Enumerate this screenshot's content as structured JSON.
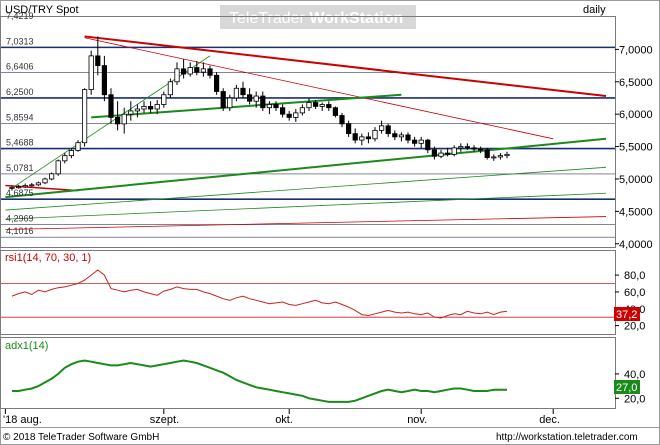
{
  "header": {
    "symbol": "USD/TRY Spot",
    "interval": "daily",
    "watermark_a": "TeleTrader ",
    "watermark_b": "WorkStation"
  },
  "footer": {
    "copyright": "© 2018 TeleTrader Software GmbH",
    "url": "http://workstation.teletrader.com"
  },
  "colors": {
    "candle_up": "#ffffff",
    "candle_down": "#000000",
    "red_line": "#cc0000",
    "green_line": "#1a8a1a",
    "blue_line": "#1a2f6e",
    "rsi_line": "#cc2222",
    "adx_line": "#1a8a1a",
    "rsi_badge": "#cc0000",
    "adx_badge": "#1a8a1a"
  },
  "chart_data": [
    {
      "type": "candlestick",
      "title": "USD/TRY Spot",
      "x_labels": [
        "'18 aug.",
        "szept.",
        "okt.",
        "nov.",
        "dec."
      ],
      "y_axis_right": [
        "7,0000",
        "6,5000",
        "6,0000",
        "5,5000",
        "5,0000",
        "4,5000",
        "4,0000"
      ],
      "y_levels_left": [
        "7,4219",
        "7,0313",
        "6,6406",
        "6,2500",
        "5,8594",
        "5,4688",
        "5,0781",
        "4,6875",
        "4,2969",
        "4,1016"
      ],
      "ylim": [
        3.95,
        7.5
      ],
      "candles": [
        {
          "o": 4.86,
          "h": 4.9,
          "l": 4.82,
          "c": 4.87
        },
        {
          "o": 4.87,
          "h": 4.91,
          "l": 4.85,
          "c": 4.88
        },
        {
          "o": 4.88,
          "h": 4.93,
          "l": 4.86,
          "c": 4.9
        },
        {
          "o": 4.9,
          "h": 4.94,
          "l": 4.88,
          "c": 4.91
        },
        {
          "o": 4.91,
          "h": 4.96,
          "l": 4.89,
          "c": 4.94
        },
        {
          "o": 4.94,
          "h": 5.02,
          "l": 4.92,
          "c": 5.0
        },
        {
          "o": 5.0,
          "h": 5.1,
          "l": 4.98,
          "c": 5.08
        },
        {
          "o": 5.08,
          "h": 5.3,
          "l": 5.05,
          "c": 5.28
        },
        {
          "o": 5.28,
          "h": 5.4,
          "l": 5.24,
          "c": 5.36
        },
        {
          "o": 5.36,
          "h": 5.48,
          "l": 5.32,
          "c": 5.44
        },
        {
          "o": 5.44,
          "h": 5.6,
          "l": 5.42,
          "c": 5.56
        },
        {
          "o": 5.56,
          "h": 6.4,
          "l": 5.5,
          "c": 6.38
        },
        {
          "o": 6.38,
          "h": 6.98,
          "l": 6.3,
          "c": 6.9
        },
        {
          "o": 6.9,
          "h": 7.2,
          "l": 6.6,
          "c": 6.75
        },
        {
          "o": 6.75,
          "h": 6.9,
          "l": 6.2,
          "c": 6.3
        },
        {
          "o": 6.3,
          "h": 6.4,
          "l": 5.85,
          "c": 5.95
        },
        {
          "o": 5.95,
          "h": 6.2,
          "l": 5.75,
          "c": 5.85
        },
        {
          "o": 5.85,
          "h": 6.1,
          "l": 5.7,
          "c": 6.0
        },
        {
          "o": 6.0,
          "h": 6.2,
          "l": 5.9,
          "c": 6.05
        },
        {
          "o": 6.05,
          "h": 6.15,
          "l": 5.95,
          "c": 6.08
        },
        {
          "o": 6.08,
          "h": 6.2,
          "l": 6.02,
          "c": 6.12
        },
        {
          "o": 6.12,
          "h": 6.2,
          "l": 6.02,
          "c": 6.08
        },
        {
          "o": 6.08,
          "h": 6.22,
          "l": 6.0,
          "c": 6.15
        },
        {
          "o": 6.15,
          "h": 6.35,
          "l": 6.1,
          "c": 6.3
        },
        {
          "o": 6.3,
          "h": 6.55,
          "l": 6.25,
          "c": 6.5
        },
        {
          "o": 6.5,
          "h": 6.8,
          "l": 6.45,
          "c": 6.7
        },
        {
          "o": 6.7,
          "h": 6.85,
          "l": 6.55,
          "c": 6.62
        },
        {
          "o": 6.62,
          "h": 6.8,
          "l": 6.58,
          "c": 6.72
        },
        {
          "o": 6.72,
          "h": 6.82,
          "l": 6.6,
          "c": 6.65
        },
        {
          "o": 6.65,
          "h": 6.8,
          "l": 6.58,
          "c": 6.7
        },
        {
          "o": 6.7,
          "h": 6.75,
          "l": 6.55,
          "c": 6.6
        },
        {
          "o": 6.6,
          "h": 6.65,
          "l": 6.3,
          "c": 6.35
        },
        {
          "o": 6.35,
          "h": 6.4,
          "l": 6.05,
          "c": 6.1
        },
        {
          "o": 6.1,
          "h": 6.3,
          "l": 6.05,
          "c": 6.25
        },
        {
          "o": 6.25,
          "h": 6.45,
          "l": 6.2,
          "c": 6.4
        },
        {
          "o": 6.4,
          "h": 6.5,
          "l": 6.25,
          "c": 6.3
        },
        {
          "o": 6.3,
          "h": 6.4,
          "l": 6.15,
          "c": 6.2
        },
        {
          "o": 6.2,
          "h": 6.35,
          "l": 6.1,
          "c": 6.28
        },
        {
          "o": 6.28,
          "h": 6.35,
          "l": 6.05,
          "c": 6.1
        },
        {
          "o": 6.1,
          "h": 6.2,
          "l": 6.0,
          "c": 6.15
        },
        {
          "o": 6.15,
          "h": 6.2,
          "l": 6.05,
          "c": 6.1
        },
        {
          "o": 6.1,
          "h": 6.15,
          "l": 5.95,
          "c": 6.0
        },
        {
          "o": 6.0,
          "h": 6.05,
          "l": 5.9,
          "c": 5.95
        },
        {
          "o": 5.95,
          "h": 6.08,
          "l": 5.88,
          "c": 6.02
        },
        {
          "o": 6.02,
          "h": 6.15,
          "l": 5.98,
          "c": 6.1
        },
        {
          "o": 6.1,
          "h": 6.25,
          "l": 6.05,
          "c": 6.18
        },
        {
          "o": 6.18,
          "h": 6.22,
          "l": 6.08,
          "c": 6.12
        },
        {
          "o": 6.12,
          "h": 6.18,
          "l": 6.05,
          "c": 6.15
        },
        {
          "o": 6.15,
          "h": 6.2,
          "l": 6.05,
          "c": 6.1
        },
        {
          "o": 6.1,
          "h": 6.12,
          "l": 5.95,
          "c": 5.98
        },
        {
          "o": 5.98,
          "h": 6.02,
          "l": 5.8,
          "c": 5.85
        },
        {
          "o": 5.85,
          "h": 5.9,
          "l": 5.65,
          "c": 5.7
        },
        {
          "o": 5.7,
          "h": 5.78,
          "l": 5.55,
          "c": 5.6
        },
        {
          "o": 5.6,
          "h": 5.7,
          "l": 5.52,
          "c": 5.65
        },
        {
          "o": 5.65,
          "h": 5.72,
          "l": 5.55,
          "c": 5.62
        },
        {
          "o": 5.62,
          "h": 5.8,
          "l": 5.58,
          "c": 5.75
        },
        {
          "o": 5.75,
          "h": 5.9,
          "l": 5.7,
          "c": 5.82
        },
        {
          "o": 5.82,
          "h": 5.85,
          "l": 5.65,
          "c": 5.7
        },
        {
          "o": 5.7,
          "h": 5.75,
          "l": 5.6,
          "c": 5.65
        },
        {
          "o": 5.65,
          "h": 5.72,
          "l": 5.58,
          "c": 5.68
        },
        {
          "o": 5.68,
          "h": 5.72,
          "l": 5.55,
          "c": 5.6
        },
        {
          "o": 5.6,
          "h": 5.65,
          "l": 5.5,
          "c": 5.55
        },
        {
          "o": 5.55,
          "h": 5.65,
          "l": 5.48,
          "c": 5.6
        },
        {
          "o": 5.6,
          "h": 5.62,
          "l": 5.4,
          "c": 5.45
        },
        {
          "o": 5.45,
          "h": 5.5,
          "l": 5.3,
          "c": 5.35
        },
        {
          "o": 5.35,
          "h": 5.45,
          "l": 5.32,
          "c": 5.4
        },
        {
          "o": 5.4,
          "h": 5.48,
          "l": 5.35,
          "c": 5.38
        },
        {
          "o": 5.38,
          "h": 5.52,
          "l": 5.35,
          "c": 5.48
        },
        {
          "o": 5.48,
          "h": 5.55,
          "l": 5.42,
          "c": 5.5
        },
        {
          "o": 5.5,
          "h": 5.55,
          "l": 5.45,
          "c": 5.48
        },
        {
          "o": 5.48,
          "h": 5.52,
          "l": 5.42,
          "c": 5.46
        },
        {
          "o": 5.46,
          "h": 5.5,
          "l": 5.4,
          "c": 5.45
        },
        {
          "o": 5.45,
          "h": 5.48,
          "l": 5.3,
          "c": 5.33
        },
        {
          "o": 5.33,
          "h": 5.38,
          "l": 5.28,
          "c": 5.34
        },
        {
          "o": 5.34,
          "h": 5.4,
          "l": 5.3,
          "c": 5.36
        },
        {
          "o": 5.36,
          "h": 5.42,
          "l": 5.32,
          "c": 5.38
        }
      ],
      "hlines": [
        7.0313,
        6.6406,
        6.25,
        5.8594,
        5.4688,
        5.0781,
        4.6875,
        4.2969,
        4.1016
      ],
      "bold_hlines": [
        7.0313,
        6.25,
        5.4688,
        4.6875
      ]
    },
    {
      "type": "line",
      "title": "rsi1(14, 70, 30, 1)",
      "y_ticks": [
        "80,0",
        "60,0",
        "40,0",
        "20,0"
      ],
      "ylim": [
        10,
        92
      ],
      "levels": [
        70,
        30
      ],
      "current": "37,2",
      "values": [
        55,
        58,
        60,
        57,
        62,
        60,
        63,
        65,
        66,
        68,
        70,
        74,
        80,
        86,
        80,
        64,
        62,
        60,
        62,
        63,
        60,
        58,
        56,
        61,
        63,
        66,
        64,
        63,
        63,
        60,
        58,
        55,
        52,
        50,
        53,
        55,
        52,
        50,
        48,
        46,
        47,
        48,
        45,
        44,
        46,
        48,
        50,
        47,
        46,
        48,
        45,
        42,
        38,
        33,
        32,
        34,
        36,
        38,
        36,
        35,
        36,
        34,
        33,
        35,
        30,
        29,
        32,
        34,
        33,
        37,
        35,
        34,
        36,
        33,
        36,
        37
      ]
    },
    {
      "type": "line",
      "title": "adx1(14)",
      "y_ticks": [
        "40,0",
        "20,0"
      ],
      "ylim": [
        12,
        58
      ],
      "current": "27,0",
      "values": [
        26,
        26,
        27,
        28,
        30,
        33,
        36,
        40,
        45,
        48,
        50,
        51,
        50,
        49,
        48,
        47,
        47,
        48,
        49,
        48,
        47,
        46,
        47,
        48,
        49,
        50,
        51,
        50,
        49,
        47,
        45,
        43,
        41,
        38,
        35,
        33,
        31,
        29,
        28,
        27,
        26,
        25,
        24,
        23,
        22,
        20,
        19,
        18,
        17,
        17,
        17,
        17,
        18,
        20,
        22,
        24,
        26,
        27,
        26,
        25,
        26,
        27,
        26,
        26,
        25,
        26,
        27,
        28,
        28,
        27,
        26,
        26,
        26,
        27,
        27,
        27
      ]
    }
  ]
}
